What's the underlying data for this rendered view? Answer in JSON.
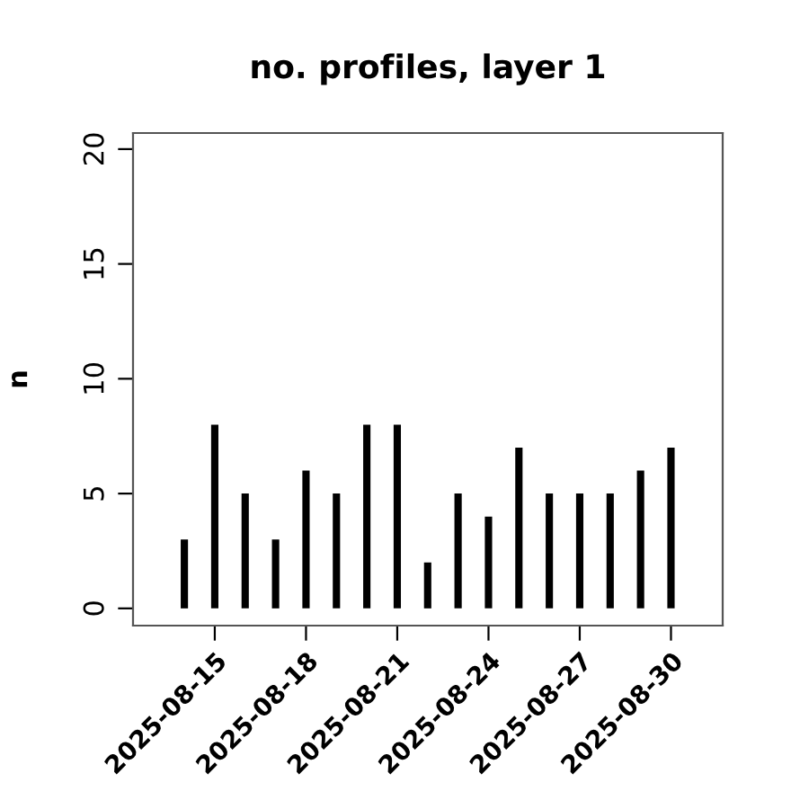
{
  "chart_data": {
    "type": "bar",
    "title": "no. profiles, layer 1",
    "ylabel": "n",
    "x": [
      "2025-08-14",
      "2025-08-15",
      "2025-08-16",
      "2025-08-17",
      "2025-08-18",
      "2025-08-19",
      "2025-08-20",
      "2025-08-21",
      "2025-08-22",
      "2025-08-23",
      "2025-08-24",
      "2025-08-25",
      "2025-08-26",
      "2025-08-27",
      "2025-08-28",
      "2025-08-29",
      "2025-08-30"
    ],
    "values": [
      3,
      8,
      5,
      3,
      6,
      5,
      8,
      8,
      2,
      5,
      4,
      7,
      5,
      5,
      5,
      6,
      7
    ],
    "color": "#000000",
    "xlim": [
      "2025-08-12T07:30",
      "2025-08-31T16:48"
    ],
    "xticks": [
      "2025-08-15",
      "2025-08-18",
      "2025-08-21",
      "2025-08-24",
      "2025-08-27",
      "2025-08-30"
    ],
    "ylim": [
      -0.75,
      20.7
    ],
    "yticks": [
      0,
      5,
      10,
      15,
      20
    ],
    "grid": false,
    "legend": false
  }
}
